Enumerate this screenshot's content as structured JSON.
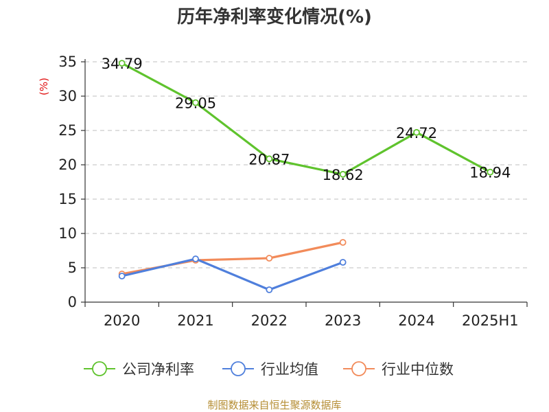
{
  "chart_data": {
    "type": "line",
    "title": "历年净利率变化情况(%)",
    "ylabel": "(%)",
    "categories": [
      "2020",
      "2021",
      "2022",
      "2023",
      "2024",
      "2025H1"
    ],
    "yticks": [
      "0",
      "5",
      "10",
      "15",
      "20",
      "25",
      "30",
      "35"
    ],
    "ylim": [
      0,
      35
    ],
    "grid": true,
    "legend_position": "bottom",
    "series": [
      {
        "name": "公司净利率",
        "color": "#5fc32d",
        "values": [
          34.79,
          29.05,
          20.87,
          18.62,
          24.72,
          18.94
        ],
        "labels": [
          "34.79",
          "29.05",
          "20.87",
          "18.62",
          "24.72",
          "18.94"
        ]
      },
      {
        "name": "行业均值",
        "color": "#4f7fdc",
        "values": [
          3.8,
          6.3,
          1.8,
          5.8,
          null,
          null
        ]
      },
      {
        "name": "行业中位数",
        "color": "#f28b5a",
        "values": [
          4.1,
          6.1,
          6.4,
          8.7,
          null,
          null
        ]
      }
    ]
  },
  "source": "制图数据来自恒生聚源数据库"
}
